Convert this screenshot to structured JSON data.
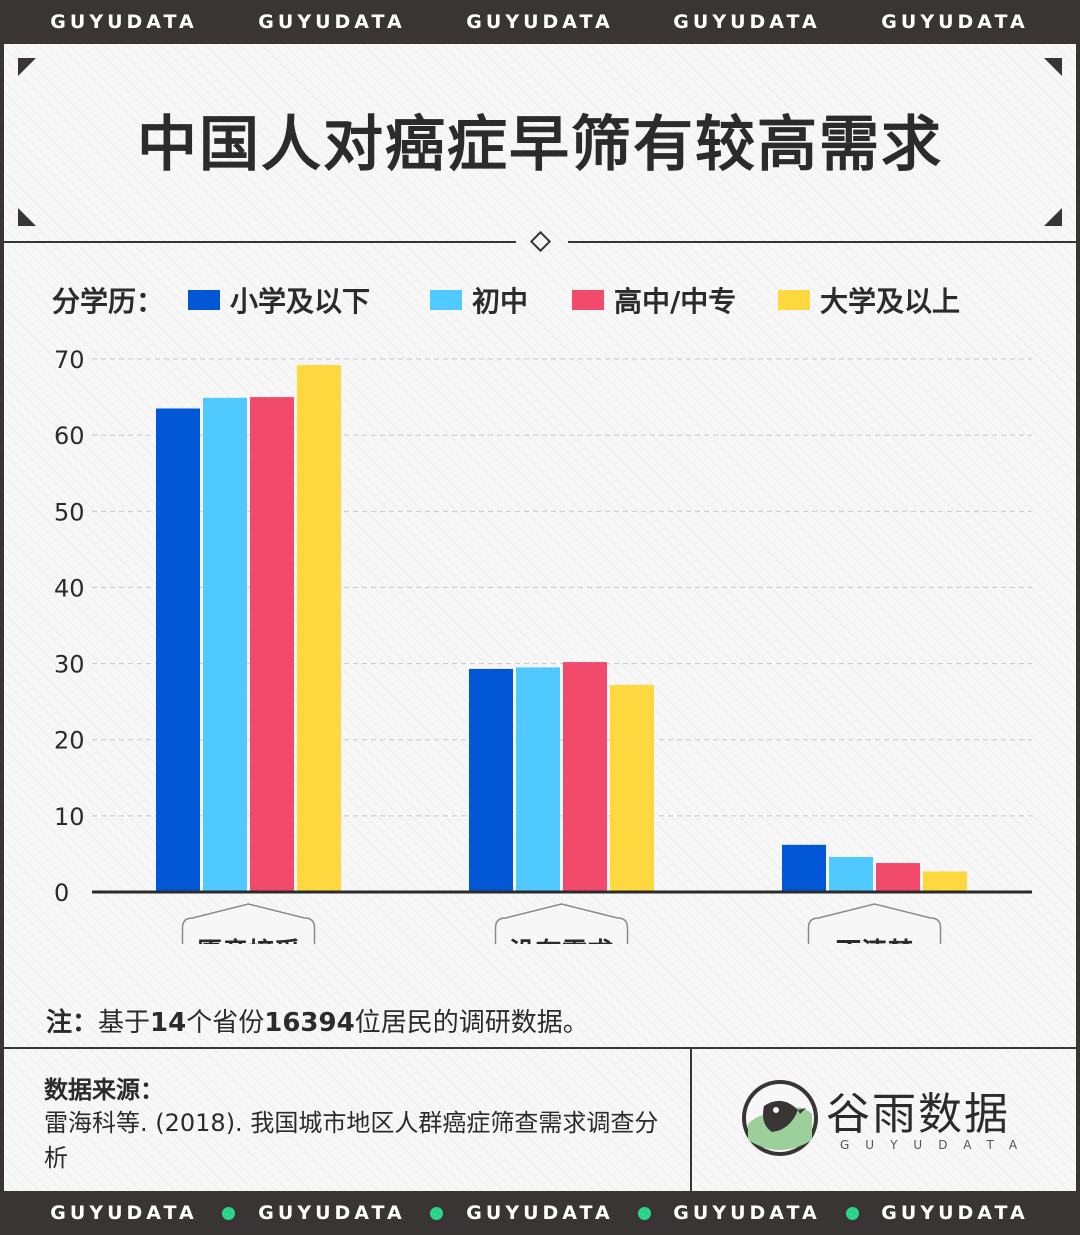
{
  "band_top": [
    "GUYUDATA",
    "GUYUDATA",
    "GUYUDATA",
    "GUYUDATA",
    "GUYUDATA"
  ],
  "band_bottom": [
    "GUYUDATA",
    "GUYUDATA",
    "GUYUDATA",
    "GUYUDATA",
    "GUYUDATA"
  ],
  "colors": {
    "dark": "#3a3535",
    "accent_dot": "#2dd48a",
    "series": [
      "#0257d6",
      "#4fc9ff",
      "#f14a6b",
      "#ffd73f"
    ]
  },
  "title": "中国人对癌症早筛有较高需求",
  "legend": {
    "label": "分学历：",
    "items": [
      "小学及以下",
      "初中",
      "高中/中专",
      "大学及以上"
    ]
  },
  "chart_data": {
    "type": "bar",
    "categories": [
      "愿意接受",
      "没有需求",
      "不清楚"
    ],
    "series": [
      {
        "name": "小学及以下",
        "values": [
          63.5,
          29.3,
          6.2
        ]
      },
      {
        "name": "初中",
        "values": [
          64.9,
          29.5,
          4.6
        ]
      },
      {
        "name": "高中/中专",
        "values": [
          65.0,
          30.2,
          3.8
        ]
      },
      {
        "name": "大学及以上",
        "values": [
          69.2,
          27.2,
          2.7
        ]
      }
    ],
    "y_ticks": [
      "0",
      "10",
      "20",
      "30",
      "40",
      "50",
      "60",
      "70"
    ],
    "ylim": [
      0,
      70
    ],
    "grid": "dashed horizontal",
    "legend_position": "top"
  },
  "note": {
    "prefix": "注：",
    "body_1": "基于",
    "num_1": "14",
    "body_2": "个省份",
    "num_2": "16394",
    "body_3": "位居民的调研数据。"
  },
  "source": {
    "title": "数据来源：",
    "text": "雷海科等. (2018). 我国城市地区人群癌症筛查需求调查分析"
  },
  "logo": {
    "name": "谷雨数据",
    "sub": "GUYUDATA"
  }
}
